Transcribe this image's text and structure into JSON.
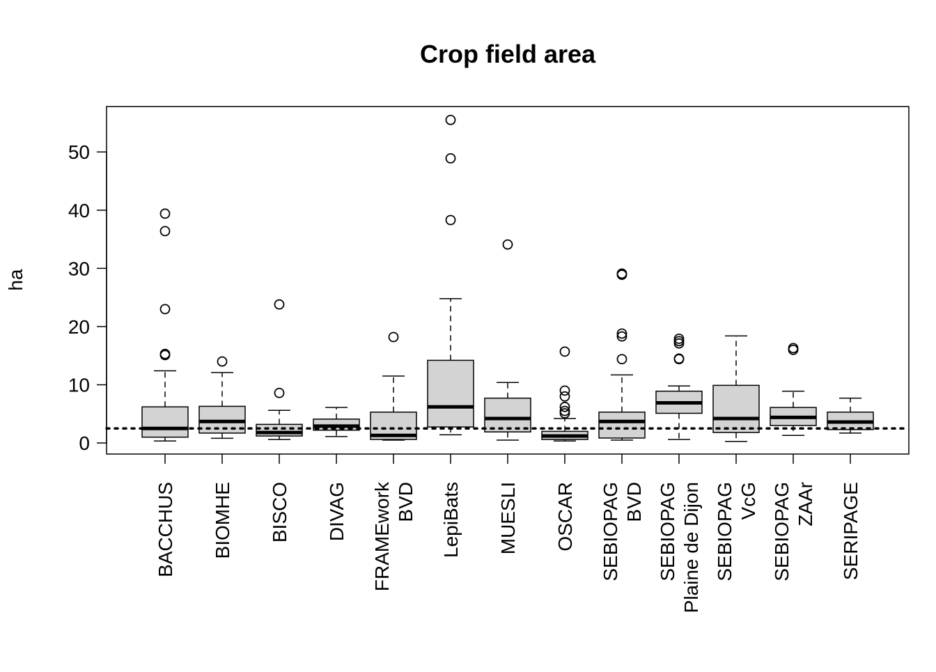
{
  "chart_data": {
    "type": "box",
    "title": "Crop field area",
    "xlabel": "",
    "ylabel": "ha",
    "ylim": [
      -1.9,
      57.8
    ],
    "yticks": [
      0,
      10,
      20,
      30,
      40,
      50
    ],
    "grid": false,
    "reference_line": {
      "value": 2.5,
      "style": "dotted"
    },
    "categories": [
      {
        "label": [
          "BACCHUS"
        ],
        "whisker_low": 0.35,
        "q1": 1.0,
        "median": 2.5,
        "q3": 6.2,
        "whisker_high": 12.4,
        "outliers": [
          39.4,
          36.4,
          23.0,
          15.3,
          15.1
        ]
      },
      {
        "label": [
          "BIOMHE"
        ],
        "whisker_low": 0.8,
        "q1": 1.7,
        "median": 3.7,
        "q3": 6.3,
        "whisker_high": 12.1,
        "outliers": [
          14.0
        ]
      },
      {
        "label": [
          "BISCO"
        ],
        "whisker_low": 0.6,
        "q1": 1.2,
        "median": 1.8,
        "q3": 3.2,
        "whisker_high": 5.6,
        "outliers": [
          8.6,
          23.8
        ]
      },
      {
        "label": [
          "DIVAG"
        ],
        "whisker_low": 1.1,
        "q1": 2.2,
        "median": 2.9,
        "q3": 4.1,
        "whisker_high": 6.1,
        "outliers": []
      },
      {
        "label": [
          "FRAMEwork",
          "BVD"
        ],
        "whisker_low": 0.5,
        "q1": 0.6,
        "median": 1.3,
        "q3": 5.3,
        "whisker_high": 11.5,
        "outliers": [
          18.2
        ]
      },
      {
        "label": [
          "LepiBats"
        ],
        "whisker_low": 1.4,
        "q1": 2.75,
        "median": 6.2,
        "q3": 14.2,
        "whisker_high": 24.8,
        "outliers": [
          38.3,
          48.9,
          55.5
        ]
      },
      {
        "label": [
          "MUESLI"
        ],
        "whisker_low": 0.5,
        "q1": 1.9,
        "median": 4.2,
        "q3": 7.7,
        "whisker_high": 10.4,
        "outliers": [
          34.1
        ]
      },
      {
        "label": [
          "OSCAR"
        ],
        "whisker_low": 0.35,
        "q1": 0.6,
        "median": 1.2,
        "q3": 2.0,
        "whisker_high": 4.2,
        "outliers": [
          15.7,
          9.0,
          8.0,
          6.2,
          5.5,
          5.1
        ]
      },
      {
        "label": [
          "SEBIOPAG",
          "BVD"
        ],
        "whisker_low": 0.5,
        "q1": 0.85,
        "median": 3.7,
        "q3": 5.3,
        "whisker_high": 11.7,
        "outliers": [
          28.9,
          29.1,
          18.3,
          18.8,
          14.4
        ]
      },
      {
        "label": [
          "SEBIOPAG",
          "Plaine de Dijon"
        ],
        "whisker_low": 0.6,
        "q1": 5.1,
        "median": 6.9,
        "q3": 8.9,
        "whisker_high": 9.8,
        "outliers": [
          17.9,
          17.5,
          17.1,
          14.5,
          14.4
        ]
      },
      {
        "label": [
          "SEBIOPAG",
          "VcG"
        ],
        "whisker_low": 0.25,
        "q1": 1.8,
        "median": 4.2,
        "q3": 9.9,
        "whisker_high": 18.4,
        "outliers": []
      },
      {
        "label": [
          "SEBIOPAG",
          "ZAAr"
        ],
        "whisker_low": 1.3,
        "q1": 3.0,
        "median": 4.4,
        "q3": 6.1,
        "whisker_high": 8.9,
        "outliers": [
          16.3,
          16.0
        ]
      },
      {
        "label": [
          "SERIPAGE"
        ],
        "whisker_low": 1.7,
        "q1": 2.3,
        "median": 3.6,
        "q3": 5.3,
        "whisker_high": 7.7,
        "outliers": []
      }
    ],
    "colors": {
      "box_fill": "#d3d3d3",
      "stroke": "#000000"
    }
  }
}
